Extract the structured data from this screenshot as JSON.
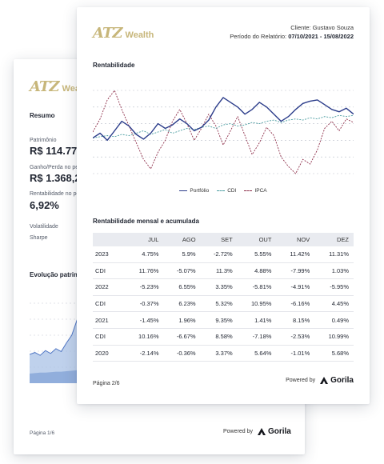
{
  "back_page": {
    "logo_mark": "ATZ",
    "logo_word": "Wealth",
    "resumo_title": "Resumo",
    "patrimonio_label": "Patrimônio",
    "patrimonio_value": "R$ 114.778",
    "ganho_label": "Ganho/Perda no pe",
    "ganho_value": "R$ 1.368,2",
    "rentabilidade_label": "Rentabilidade no pe",
    "rentabilidade_value": "6,92%",
    "volatilidade_label": "Volatilidade",
    "sharpe_label": "Sharpe",
    "evolucao_title": "Evolução patrim",
    "page_label": "Página 1/6",
    "powered_by": "Powered by",
    "brand": "Gorila"
  },
  "front_page": {
    "logo_mark": "ATZ",
    "logo_word": "Wealth",
    "client": "Cliente: Gustavo Souza",
    "period_label": "Período do Relatório:",
    "period_value": "07/10/2021 - 15/08/2022",
    "rentabilidade_title": "Rentabilidade",
    "legend": {
      "portfolio": "Portfólio",
      "cdi": "CDI",
      "ipca": "IPCA"
    },
    "table_title": "Rentabilidade mensal e acumulada",
    "table": {
      "headers": [
        "",
        "JUL",
        "AGO",
        "SET",
        "OUT",
        "NOV",
        "DEZ"
      ],
      "rows": [
        [
          "2023",
          "4.75%",
          "5.9%",
          "-2.72%",
          "5.55%",
          "11.42%",
          "11.31%"
        ],
        [
          "CDI",
          "11.76%",
          "-5.07%",
          "11.3%",
          "4.88%",
          "-7.99%",
          "1.03%"
        ],
        [
          "2022",
          "-5.23%",
          "6.55%",
          "3.35%",
          "-5.81%",
          "-4.91%",
          "-5.95%"
        ],
        [
          "CDI",
          "-0.37%",
          "6.23%",
          "5.32%",
          "10.95%",
          "-6.16%",
          "4.45%"
        ],
        [
          "2021",
          "-1.45%",
          "1.96%",
          "9.35%",
          "1.41%",
          "8.15%",
          "0.49%"
        ],
        [
          "CDI",
          "10.16%",
          "-6.67%",
          "8.58%",
          "-7.18%",
          "-2.53%",
          "10.99%"
        ],
        [
          "2020",
          "-2.14%",
          "-0.36%",
          "3.37%",
          "5.64%",
          "-1.01%",
          "5.68%"
        ]
      ]
    },
    "page_label": "Página 2/6",
    "powered_by": "Powered by",
    "brand": "Gorila"
  },
  "colors": {
    "gold": "#c7b67a",
    "portfolio": "#2b3c8a",
    "cdi": "#4a9ca0",
    "ipca": "#8e2f4a",
    "area": "#a9c2e6"
  },
  "chart_data": [
    {
      "type": "line",
      "title": "Rentabilidade",
      "legend_position": "bottom",
      "grid": true,
      "series": [
        {
          "name": "Portfólio",
          "values": [
            0.0,
            0.4,
            -0.2,
            0.6,
            1.4,
            1.0,
            0.3,
            -0.1,
            0.4,
            1.2,
            0.8,
            1.1,
            1.6,
            1.2,
            0.6,
            0.9,
            1.5,
            2.6,
            3.4,
            3.0,
            2.6,
            2.0,
            2.4,
            3.0,
            2.6,
            2.0,
            1.4,
            1.8,
            2.4,
            2.9,
            3.1,
            3.2,
            2.8,
            2.4,
            2.2,
            2.5,
            2.0
          ]
        },
        {
          "name": "CDI",
          "values": [
            0.0,
            0.1,
            0.2,
            0.1,
            0.3,
            0.2,
            0.4,
            0.6,
            0.3,
            0.5,
            0.7,
            0.4,
            0.6,
            0.8,
            0.7,
            0.9,
            1.0,
            0.8,
            1.1,
            1.2,
            1.0,
            1.1,
            1.3,
            1.2,
            1.4,
            1.5,
            1.3,
            1.5,
            1.6,
            1.5,
            1.7,
            1.6,
            1.8,
            1.7,
            1.9,
            1.8,
            1.9
          ]
        },
        {
          "name": "IPCA",
          "values": [
            0.5,
            1.6,
            3.2,
            4.0,
            2.4,
            1.0,
            -0.4,
            -1.8,
            -2.6,
            -1.2,
            -0.2,
            1.4,
            2.4,
            1.2,
            -0.2,
            0.8,
            2.0,
            1.0,
            -0.6,
            0.6,
            1.8,
            0.2,
            -1.4,
            -0.4,
            0.9,
            0.2,
            -1.6,
            -2.4,
            -3.0,
            -1.8,
            -2.2,
            -1.0,
            0.8,
            1.4,
            0.6,
            1.6,
            1.3
          ]
        }
      ]
    },
    {
      "type": "area",
      "title": "Evolução patrim",
      "series": [
        {
          "name": "",
          "values": [
            3.0,
            3.2,
            2.9,
            3.4,
            3.1,
            3.6,
            3.3,
            4.2,
            5.0,
            6.6,
            7.4,
            8.2,
            8.8
          ]
        },
        {
          "name": "",
          "values": [
            1.0,
            1.05,
            1.1,
            1.1,
            1.15,
            1.2,
            1.2,
            1.25,
            1.3,
            1.35,
            1.4,
            1.45,
            1.5
          ]
        }
      ]
    }
  ]
}
